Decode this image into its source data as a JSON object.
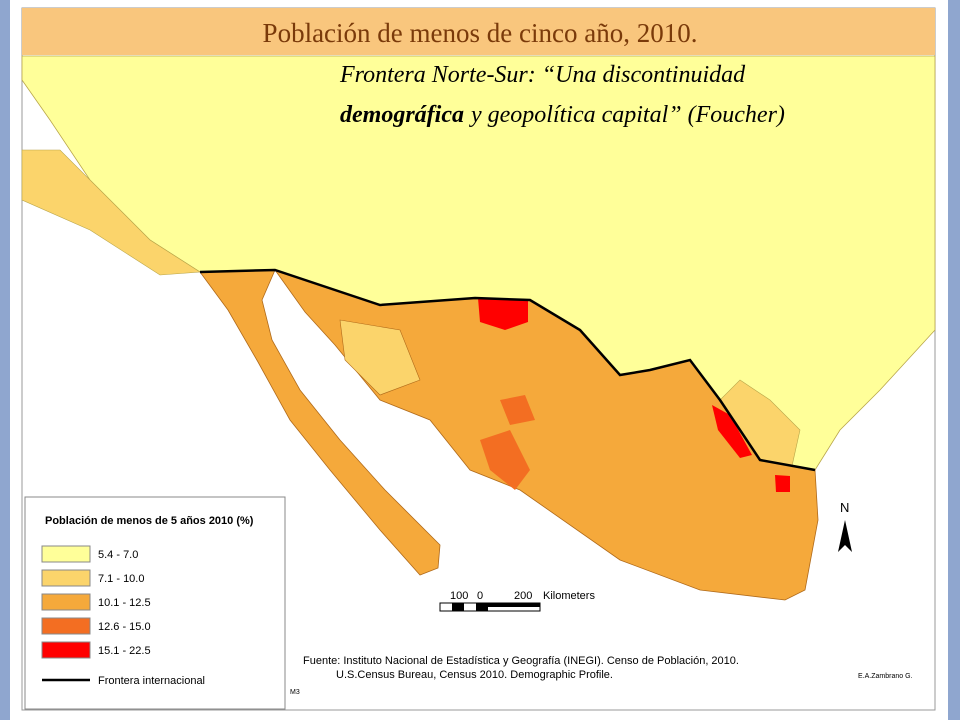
{
  "header": {
    "title": "Población de menos de cinco año, 2010.",
    "subtitle_line1": "Frontera Norte-Sur: “Una discontinuidad",
    "subtitle_line2_bold": "demográfica",
    "subtitle_line2_rest": "y geopolítica capital” (Foucher)"
  },
  "legend": {
    "title": "Población de menos de 5 años 2010 (%)",
    "items": [
      {
        "label": "5.4 - 7.0",
        "color": "#ffff99"
      },
      {
        "label": "7.1 - 10.0",
        "color": "#fbd46b"
      },
      {
        "label": "10.1 - 12.5",
        "color": "#f5a93b"
      },
      {
        "label": "12.6 - 15.0",
        "color": "#f36e22"
      },
      {
        "label": "15.1 - 22.5",
        "color": "#ff0000"
      }
    ],
    "border_label": "Frontera internacional"
  },
  "scale": {
    "left": "100",
    "zero": "0",
    "right": "200",
    "unit": "Kilometers"
  },
  "north": "N",
  "source": {
    "line1": "Fuente: Instituto Nacional de Estadística y Geografía (INEGI). Censo de Población, 2010.",
    "line2": "U.S.Census Bureau, Census 2010. Demographic Profile."
  },
  "credit": "E.A.Zambrano G.",
  "code": "M3"
}
